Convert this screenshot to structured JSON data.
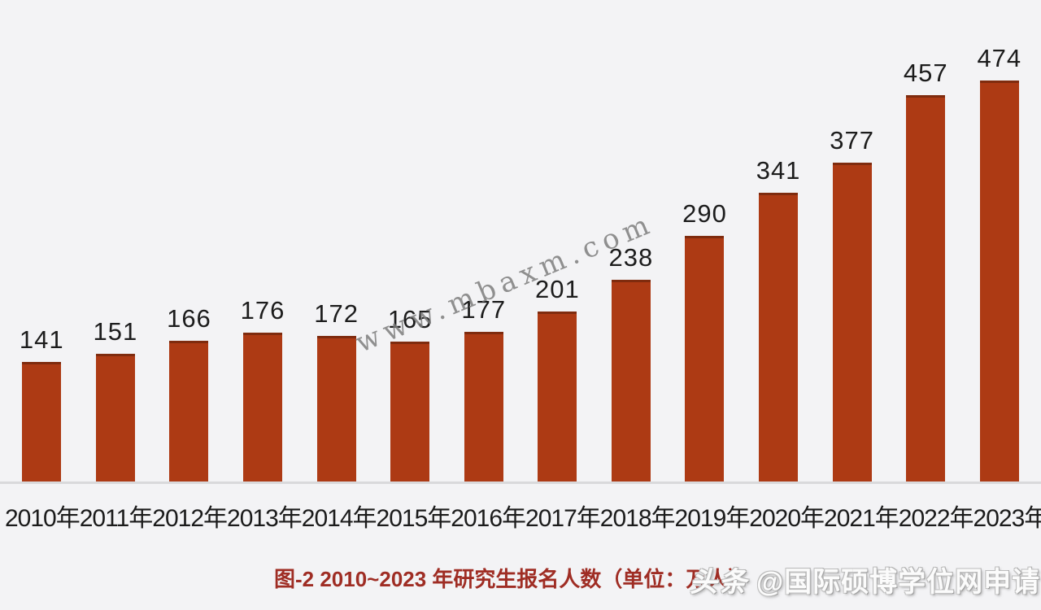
{
  "page": {
    "background_color": "#f3f3f5"
  },
  "chart_data": {
    "type": "bar",
    "title": "图-2 2010~2023 年研究生报名人数（单位：万人）",
    "unit": "万人",
    "categories": [
      "2010年",
      "2011年",
      "2012年",
      "2013年",
      "2014年",
      "2015年",
      "2016年",
      "2017年",
      "2018年",
      "2019年",
      "2020年",
      "2021年",
      "2022年",
      "2023年"
    ],
    "values": [
      141,
      151,
      166,
      176,
      172,
      165,
      177,
      201,
      238,
      290,
      341,
      377,
      457,
      474
    ],
    "xlabel": "",
    "ylabel": "",
    "ylim": [
      0,
      500
    ],
    "grid": false,
    "legend": "none",
    "value_labels_shown": true,
    "colors": {
      "bar_fill": "#ad3a14",
      "bar_top_edge": "#7f2b0e",
      "value_label": "#1c1c1c",
      "axis_label": "#1b1b1b",
      "baseline": "#d9d9db",
      "caption": "#9f2d24"
    }
  },
  "watermarks": {
    "site": {
      "text": "www.mbaxm.com",
      "color": "#7d7d7d"
    },
    "toutiao": {
      "brand": "头条",
      "handle": "@国际硕博学位网申请"
    }
  }
}
